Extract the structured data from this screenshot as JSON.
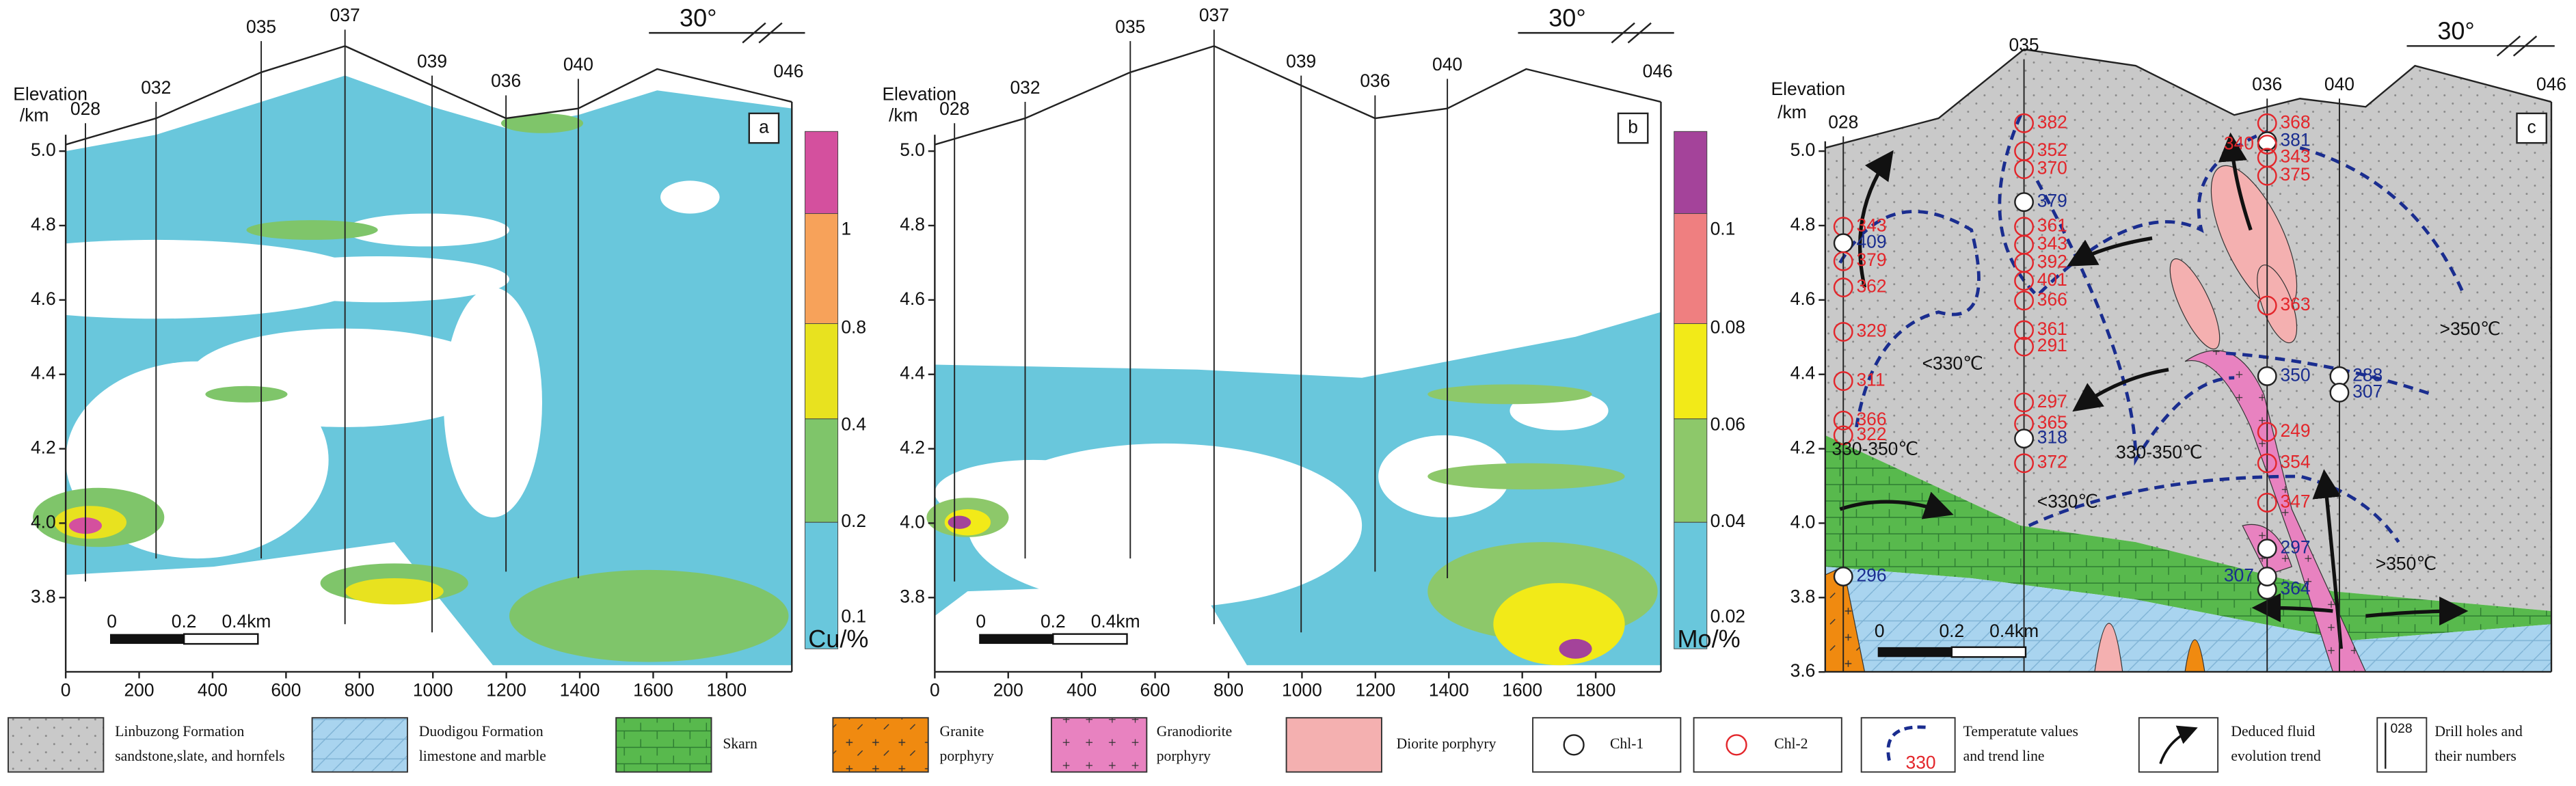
{
  "panels": [
    {
      "letter": "a",
      "strike": "30°",
      "elevation": "Elevation",
      "unit": "/km",
      "yticks": [
        "5.0",
        "4.8",
        "4.6",
        "4.4",
        "4.2",
        "4.0",
        "3.8"
      ],
      "xticks": [
        "0",
        "200",
        "400",
        "600",
        "800",
        "1000",
        "1200",
        "1400",
        "1600",
        "1800"
      ],
      "holes": [
        "028",
        "032",
        "035",
        "037",
        "039",
        "036",
        "040",
        "046"
      ],
      "colorbar": [
        "1",
        "0.8",
        "0.4",
        "0.2",
        "0.1"
      ],
      "colorbar_unit": "Cu/%",
      "scale": [
        "0",
        "0.2",
        "0.4km"
      ]
    },
    {
      "letter": "b",
      "strike": "30°",
      "elevation": "Elevation",
      "unit": "/km",
      "yticks": [
        "5.0",
        "4.8",
        "4.6",
        "4.4",
        "4.2",
        "4.0",
        "3.8"
      ],
      "xticks": [
        "0",
        "200",
        "400",
        "600",
        "800",
        "1000",
        "1200",
        "1400",
        "1600",
        "1800"
      ],
      "holes": [
        "028",
        "032",
        "035",
        "037",
        "039",
        "036",
        "040",
        "046"
      ],
      "colorbar": [
        "0.1",
        "0.08",
        "0.06",
        "0.04",
        "0.02"
      ],
      "colorbar_unit": "Mo/%",
      "scale": [
        "0",
        "0.2",
        "0.4km"
      ]
    },
    {
      "letter": "c",
      "strike": "30°",
      "elevation": "Elevation",
      "unit": "/km",
      "yticks": [
        "5.0",
        "4.8",
        "4.6",
        "4.4",
        "4.2",
        "4.0",
        "3.8",
        "3.6"
      ],
      "holes": [
        "028",
        "035",
        "036",
        "040",
        "046"
      ],
      "scale": [
        "0",
        "0.2",
        "0.4km"
      ],
      "samples": [
        {
          "label": "382",
          "type": "Chl-2"
        },
        {
          "label": "352",
          "type": "Chl-2"
        },
        {
          "label": "370",
          "type": "Chl-2"
        },
        {
          "label": "379",
          "type": "Chl-1"
        },
        {
          "label": "361",
          "type": "Chl-2"
        },
        {
          "label": "343",
          "type": "Chl-2"
        },
        {
          "label": "392",
          "type": "Chl-2"
        },
        {
          "label": "401",
          "type": "Chl-2"
        },
        {
          "label": "366",
          "type": "Chl-2"
        },
        {
          "label": "361",
          "type": "Chl-2"
        },
        {
          "label": "291",
          "type": "Chl-2"
        },
        {
          "label": "297",
          "type": "Chl-2"
        },
        {
          "label": "365",
          "type": "Chl-2"
        },
        {
          "label": "318",
          "type": "Chl-1"
        },
        {
          "label": "372",
          "type": "Chl-2"
        },
        {
          "label": "343",
          "type": "Chl-2"
        },
        {
          "label": "409",
          "type": "Chl-1"
        },
        {
          "label": "379",
          "type": "Chl-2"
        },
        {
          "label": "362",
          "type": "Chl-2"
        },
        {
          "label": "329",
          "type": "Chl-2"
        },
        {
          "label": "311",
          "type": "Chl-2"
        },
        {
          "label": "366",
          "type": "Chl-2"
        },
        {
          "label": "322",
          "type": "Chl-2"
        },
        {
          "label": "296",
          "type": "Chl-1"
        },
        {
          "label": "368",
          "type": "Chl-2"
        },
        {
          "label": "381",
          "type": "Chl-1"
        },
        {
          "label": "343",
          "type": "Chl-2"
        },
        {
          "label": "375",
          "type": "Chl-2"
        },
        {
          "label": "363",
          "type": "Chl-2"
        },
        {
          "label": "350",
          "type": "Chl-1"
        },
        {
          "label": "249",
          "type": "Chl-2"
        },
        {
          "label": "354",
          "type": "Chl-2"
        },
        {
          "label": "347",
          "type": "Chl-2"
        },
        {
          "label": "297",
          "type": "Chl-1"
        },
        {
          "label": "364",
          "type": "Chl-1"
        },
        {
          "label": "340",
          "type": "Chl-2"
        },
        {
          "label": "307",
          "type": "Chl-1"
        },
        {
          "label": "288",
          "type": "Chl-1"
        },
        {
          "label": "307",
          "type": "Chl-1"
        }
      ],
      "temperatures": [
        "<330℃",
        "330-350℃",
        "<330℃",
        "330-350℃",
        ">350℃",
        ">350℃"
      ]
    }
  ],
  "legend": [
    {
      "lines": [
        "Linbuzong Formation",
        "sandstone,slate, and hornfels"
      ]
    },
    {
      "lines": [
        "Duodigou Formation",
        "limestone and marble"
      ]
    },
    {
      "lines": [
        "Skarn"
      ]
    },
    {
      "lines": [
        "Granite",
        "porphyry"
      ]
    },
    {
      "lines": [
        "Granodiorite",
        "porphyry"
      ]
    },
    {
      "lines": [
        "Diorite porphyry"
      ]
    },
    {
      "lines": [
        "Chl-1"
      ]
    },
    {
      "lines": [
        "Chl-2"
      ]
    },
    {
      "lines": [
        "Temperatute values",
        "and trend line"
      ],
      "swatch": "330"
    },
    {
      "lines": [
        "Deduced fluid",
        "evolution trend"
      ]
    },
    {
      "lines": [
        "Drill holes and",
        "their numbers"
      ],
      "swatch": "028"
    }
  ]
}
